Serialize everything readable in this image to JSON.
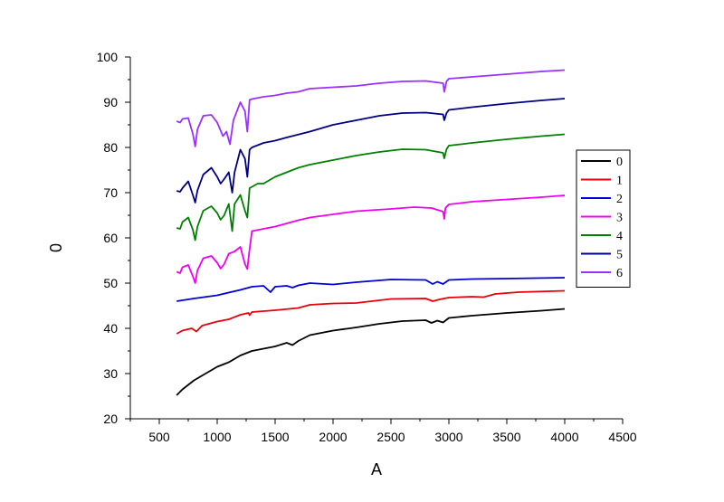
{
  "chart_data": {
    "type": "line",
    "xlabel": "A",
    "ylabel": "0",
    "xlim": [
      250,
      4500
    ],
    "ylim": [
      20,
      100
    ],
    "x_ticks": [
      500,
      1000,
      1500,
      2000,
      2500,
      3000,
      3500,
      4000,
      4500
    ],
    "y_ticks": [
      20,
      30,
      40,
      50,
      60,
      70,
      80,
      90,
      100
    ],
    "grid": false,
    "legend_position": "right",
    "series": [
      {
        "name": "0",
        "color": "#000000",
        "points": [
          [
            650,
            25.2
          ],
          [
            700,
            26.5
          ],
          [
            800,
            28.5
          ],
          [
            900,
            30
          ],
          [
            1000,
            31.5
          ],
          [
            1100,
            32.5
          ],
          [
            1200,
            34
          ],
          [
            1300,
            35
          ],
          [
            1400,
            35.5
          ],
          [
            1500,
            36
          ],
          [
            1600,
            36.8
          ],
          [
            1650,
            36.3
          ],
          [
            1700,
            37.2
          ],
          [
            1800,
            38.5
          ],
          [
            1900,
            39
          ],
          [
            2000,
            39.5
          ],
          [
            2200,
            40.2
          ],
          [
            2400,
            41
          ],
          [
            2600,
            41.6
          ],
          [
            2800,
            41.8
          ],
          [
            2850,
            41.2
          ],
          [
            2900,
            41.7
          ],
          [
            2950,
            41.3
          ],
          [
            3000,
            42.3
          ],
          [
            3200,
            42.8
          ],
          [
            3500,
            43.4
          ],
          [
            3800,
            43.9
          ],
          [
            4000,
            44.3
          ]
        ]
      },
      {
        "name": "1",
        "color": "#e8000b",
        "points": [
          [
            650,
            38.8
          ],
          [
            700,
            39.5
          ],
          [
            780,
            40
          ],
          [
            820,
            39.3
          ],
          [
            870,
            40.6
          ],
          [
            1000,
            41.5
          ],
          [
            1100,
            42
          ],
          [
            1200,
            43
          ],
          [
            1270,
            43.4
          ],
          [
            1280,
            42.9
          ],
          [
            1300,
            43.6
          ],
          [
            1500,
            44
          ],
          [
            1700,
            44.5
          ],
          [
            1800,
            45.2
          ],
          [
            2000,
            45.5
          ],
          [
            2200,
            45.6
          ],
          [
            2500,
            46.5
          ],
          [
            2800,
            46.6
          ],
          [
            2860,
            46
          ],
          [
            2920,
            46.4
          ],
          [
            3000,
            46.8
          ],
          [
            3200,
            47
          ],
          [
            3300,
            46.9
          ],
          [
            3400,
            47.6
          ],
          [
            3600,
            48
          ],
          [
            4000,
            48.3
          ]
        ]
      },
      {
        "name": "2",
        "color": "#0000d8",
        "points": [
          [
            650,
            46
          ],
          [
            800,
            46.6
          ],
          [
            1000,
            47.3
          ],
          [
            1200,
            48.5
          ],
          [
            1300,
            49.2
          ],
          [
            1400,
            49.4
          ],
          [
            1460,
            48
          ],
          [
            1500,
            49.2
          ],
          [
            1600,
            49.4
          ],
          [
            1650,
            49
          ],
          [
            1700,
            49.5
          ],
          [
            1800,
            50
          ],
          [
            2000,
            49.7
          ],
          [
            2200,
            50.2
          ],
          [
            2500,
            50.8
          ],
          [
            2800,
            50.7
          ],
          [
            2860,
            49.8
          ],
          [
            2900,
            50.3
          ],
          [
            2950,
            49.8
          ],
          [
            3000,
            50.7
          ],
          [
            3200,
            50.9
          ],
          [
            3500,
            51
          ],
          [
            4000,
            51.2
          ]
        ]
      },
      {
        "name": "3",
        "color": "#f000f0",
        "points": [
          [
            650,
            52.5
          ],
          [
            680,
            52.2
          ],
          [
            700,
            53.5
          ],
          [
            750,
            54
          ],
          [
            790,
            51.5
          ],
          [
            810,
            50
          ],
          [
            830,
            52.8
          ],
          [
            880,
            55.5
          ],
          [
            950,
            56
          ],
          [
            1000,
            54.5
          ],
          [
            1030,
            53.2
          ],
          [
            1060,
            54.2
          ],
          [
            1100,
            56.5
          ],
          [
            1150,
            57
          ],
          [
            1200,
            58
          ],
          [
            1240,
            54.2
          ],
          [
            1260,
            53.1
          ],
          [
            1280,
            57.5
          ],
          [
            1300,
            61.5
          ],
          [
            1400,
            62
          ],
          [
            1500,
            62.5
          ],
          [
            1600,
            63.2
          ],
          [
            1700,
            63.9
          ],
          [
            1800,
            64.5
          ],
          [
            2000,
            65.2
          ],
          [
            2200,
            65.9
          ],
          [
            2500,
            66.4
          ],
          [
            2700,
            66.8
          ],
          [
            2850,
            66.6
          ],
          [
            2950,
            65.8
          ],
          [
            2960,
            64.2
          ],
          [
            2970,
            66.6
          ],
          [
            3000,
            67.4
          ],
          [
            3200,
            68
          ],
          [
            3500,
            68.5
          ],
          [
            3800,
            69
          ],
          [
            4000,
            69.4
          ]
        ]
      },
      {
        "name": "4",
        "color": "#008000",
        "points": [
          [
            650,
            62.2
          ],
          [
            680,
            62
          ],
          [
            700,
            63.5
          ],
          [
            750,
            64.5
          ],
          [
            790,
            61.8
          ],
          [
            810,
            59.5
          ],
          [
            830,
            62.5
          ],
          [
            880,
            66
          ],
          [
            950,
            67
          ],
          [
            1000,
            65.5
          ],
          [
            1030,
            64
          ],
          [
            1060,
            65
          ],
          [
            1100,
            67.5
          ],
          [
            1130,
            61.5
          ],
          [
            1150,
            67.5
          ],
          [
            1200,
            69.5
          ],
          [
            1240,
            66
          ],
          [
            1260,
            64.5
          ],
          [
            1280,
            71
          ],
          [
            1350,
            72
          ],
          [
            1400,
            72
          ],
          [
            1500,
            73.5
          ],
          [
            1600,
            74.5
          ],
          [
            1700,
            75.5
          ],
          [
            1800,
            76.2
          ],
          [
            2000,
            77.2
          ],
          [
            2200,
            78.2
          ],
          [
            2400,
            79
          ],
          [
            2600,
            79.6
          ],
          [
            2800,
            79.5
          ],
          [
            2950,
            78.8
          ],
          [
            2960,
            77.6
          ],
          [
            2980,
            79.6
          ],
          [
            3000,
            80.4
          ],
          [
            3200,
            81
          ],
          [
            3500,
            81.8
          ],
          [
            3800,
            82.5
          ],
          [
            4000,
            82.9
          ]
        ]
      },
      {
        "name": "5",
        "color": "#000080",
        "points": [
          [
            650,
            70.4
          ],
          [
            680,
            70.2
          ],
          [
            700,
            71
          ],
          [
            750,
            72.5
          ],
          [
            790,
            69.5
          ],
          [
            810,
            67.8
          ],
          [
            830,
            70.5
          ],
          [
            880,
            74
          ],
          [
            950,
            75.5
          ],
          [
            1000,
            73.5
          ],
          [
            1030,
            72
          ],
          [
            1060,
            73
          ],
          [
            1100,
            74.5
          ],
          [
            1130,
            70
          ],
          [
            1150,
            74.5
          ],
          [
            1200,
            79.5
          ],
          [
            1240,
            77.5
          ],
          [
            1260,
            73.5
          ],
          [
            1280,
            79.5
          ],
          [
            1300,
            80
          ],
          [
            1400,
            81
          ],
          [
            1500,
            81.5
          ],
          [
            1600,
            82.2
          ],
          [
            1800,
            83.5
          ],
          [
            2000,
            85
          ],
          [
            2200,
            86
          ],
          [
            2400,
            87
          ],
          [
            2600,
            87.6
          ],
          [
            2800,
            87.7
          ],
          [
            2950,
            87.3
          ],
          [
            2960,
            86
          ],
          [
            2980,
            87.6
          ],
          [
            3000,
            88.3
          ],
          [
            3200,
            88.9
          ],
          [
            3500,
            89.7
          ],
          [
            3800,
            90.4
          ],
          [
            4000,
            90.8
          ]
        ]
      },
      {
        "name": "6",
        "color": "#9b30ff",
        "points": [
          [
            650,
            85.8
          ],
          [
            680,
            85.5
          ],
          [
            700,
            86.3
          ],
          [
            750,
            86.5
          ],
          [
            790,
            83
          ],
          [
            810,
            80.2
          ],
          [
            830,
            84
          ],
          [
            880,
            87
          ],
          [
            950,
            87.2
          ],
          [
            1000,
            85.5
          ],
          [
            1050,
            82.5
          ],
          [
            1080,
            83.5
          ],
          [
            1110,
            80.7
          ],
          [
            1140,
            86
          ],
          [
            1200,
            90
          ],
          [
            1240,
            88
          ],
          [
            1260,
            83.5
          ],
          [
            1280,
            90.5
          ],
          [
            1300,
            90.7
          ],
          [
            1400,
            91.2
          ],
          [
            1500,
            91.5
          ],
          [
            1600,
            92
          ],
          [
            1700,
            92.3
          ],
          [
            1800,
            93
          ],
          [
            2000,
            93.3
          ],
          [
            2200,
            93.6
          ],
          [
            2400,
            94.2
          ],
          [
            2600,
            94.6
          ],
          [
            2800,
            94.7
          ],
          [
            2950,
            94.2
          ],
          [
            2960,
            92.3
          ],
          [
            2980,
            94.6
          ],
          [
            3000,
            95.2
          ],
          [
            3200,
            95.6
          ],
          [
            3500,
            96.2
          ],
          [
            3800,
            96.8
          ],
          [
            4000,
            97.1
          ]
        ]
      }
    ]
  }
}
